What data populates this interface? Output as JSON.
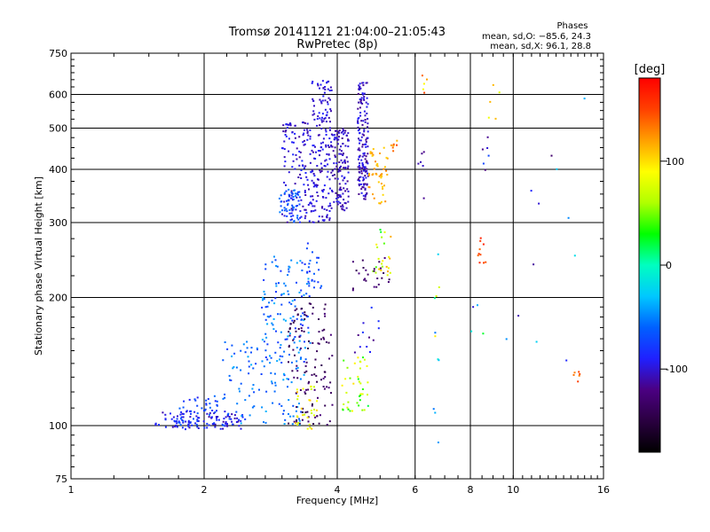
{
  "chart_data": {
    "type": "scatter",
    "title": "Tromsø 20141121 21:04:00–21:05:43",
    "subtitle": "RwPretec (8p)",
    "xlabel": "Frequency [MHz]",
    "ylabel": "Stationary phase Virtual Height [km]",
    "x_scale": "log2",
    "y_scale": "log",
    "xlim": [
      1,
      16
    ],
    "ylim": [
      75,
      750
    ],
    "x_ticks": [
      1,
      2,
      4,
      6,
      8,
      10,
      16
    ],
    "y_ticks": [
      75,
      100,
      200,
      300,
      400,
      500,
      600,
      750
    ],
    "grid": true,
    "stats": {
      "heading": "Phases",
      "line_o": "mean, sd,O: −85.6, 24.3",
      "line_x": "mean, sd,X:  96.1, 28.8"
    },
    "colorbar": {
      "label": "[deg]",
      "min": -180,
      "max": 180,
      "ticks": [
        100,
        0,
        -100
      ],
      "colors": [
        "#000000",
        "#2a0040",
        "#4b0082",
        "#2020ff",
        "#0060ff",
        "#00c8ff",
        "#00ffc0",
        "#00ff00",
        "#b0ff00",
        "#ffff00",
        "#ffa000",
        "#ff4000",
        "#ff0000"
      ]
    },
    "clusters": [
      {
        "x": [
          1.55,
          2.45
        ],
        "y": [
          98,
          108
        ],
        "n": 100,
        "phase": -95,
        "spread": 18
      },
      {
        "x": [
          1.75,
          2.15
        ],
        "y": [
          100,
          118
        ],
        "n": 50,
        "phase": -75,
        "spread": 20
      },
      {
        "x": [
          2.2,
          3.4
        ],
        "y": [
          100,
          160
        ],
        "n": 120,
        "phase": -55,
        "spread": 20
      },
      {
        "x": [
          2.7,
          3.5
        ],
        "y": [
          140,
          250
        ],
        "n": 120,
        "phase": -60,
        "spread": 25
      },
      {
        "x": [
          3.1,
          3.9
        ],
        "y": [
          100,
          195
        ],
        "n": 120,
        "phase": -135,
        "spread": 12
      },
      {
        "x": [
          3.2,
          3.6
        ],
        "y": [
          98,
          125
        ],
        "n": 30,
        "phase": 90,
        "spread": 25
      },
      {
        "x": [
          3.5,
          3.9
        ],
        "y": [
          300,
          650
        ],
        "n": 170,
        "phase": -100,
        "spread": 12
      },
      {
        "x": [
          3.0,
          3.5
        ],
        "y": [
          300,
          520
        ],
        "n": 130,
        "phase": -100,
        "spread": 14
      },
      {
        "x": [
          2.95,
          3.3
        ],
        "y": [
          300,
          360
        ],
        "n": 50,
        "phase": -65,
        "spread": 15
      },
      {
        "x": [
          3.9,
          4.25
        ],
        "y": [
          320,
          500
        ],
        "n": 120,
        "phase": -105,
        "spread": 12
      },
      {
        "x": [
          4.45,
          4.7
        ],
        "y": [
          340,
          640
        ],
        "n": 160,
        "phase": -105,
        "spread": 15
      },
      {
        "x": [
          4.7,
          5.2
        ],
        "y": [
          330,
          450
        ],
        "n": 45,
        "phase": 115,
        "spread": 15
      },
      {
        "x": [
          4.8,
          5.3
        ],
        "y": [
          225,
          290
        ],
        "n": 25,
        "phase": 70,
        "spread": 50
      },
      {
        "x": [
          4.3,
          5.3
        ],
        "y": [
          205,
          250
        ],
        "n": 25,
        "phase": -130,
        "spread": 10
      },
      {
        "x": [
          3.4,
          3.7
        ],
        "y": [
          205,
          270
        ],
        "n": 20,
        "phase": -70,
        "spread": 15
      },
      {
        "x": [
          4.1,
          4.7
        ],
        "y": [
          108,
          145
        ],
        "n": 40,
        "phase": 60,
        "spread": 40
      },
      {
        "x": [
          5.3,
          5.5
        ],
        "y": [
          430,
          470
        ],
        "n": 8,
        "phase": 130,
        "spread": 20
      },
      {
        "x": [
          4.3,
          5.0
        ],
        "y": [
          145,
          200
        ],
        "n": 12,
        "phase": -100,
        "spread": 20
      },
      {
        "x": [
          6.2,
          6.4
        ],
        "y": [
          600,
          680
        ],
        "n": 5,
        "phase": 110,
        "spread": 40
      },
      {
        "x": [
          6.1,
          6.3
        ],
        "y": [
          340,
          450
        ],
        "n": 6,
        "phase": -110,
        "spread": 10
      },
      {
        "x": [
          6.6,
          6.8
        ],
        "y": [
          140,
          290
        ],
        "n": 8,
        "phase": 20,
        "spread": 80
      },
      {
        "x": [
          8.3,
          8.7
        ],
        "y": [
          240,
          290
        ],
        "n": 10,
        "phase": 150,
        "spread": 15
      },
      {
        "x": [
          8.5,
          8.8
        ],
        "y": [
          390,
          520
        ],
        "n": 6,
        "phase": -100,
        "spread": 30
      },
      {
        "x": [
          8.8,
          9.4
        ],
        "y": [
          500,
          650
        ],
        "n": 5,
        "phase": 100,
        "spread": 30
      },
      {
        "x": [
          10.5,
          14.5
        ],
        "y": [
          128,
          650
        ],
        "n": 10,
        "phase": -80,
        "spread": 70
      },
      {
        "x": [
          13.7,
          14.2
        ],
        "y": [
          125,
          135
        ],
        "n": 6,
        "phase": 140,
        "spread": 15
      },
      {
        "x": [
          8.0,
          10.5
        ],
        "y": [
          140,
          200
        ],
        "n": 6,
        "phase": -40,
        "spread": 70
      },
      {
        "x": [
          6.6,
          6.8
        ],
        "y": [
          90,
          110
        ],
        "n": 3,
        "phase": -40,
        "spread": 20
      }
    ]
  }
}
